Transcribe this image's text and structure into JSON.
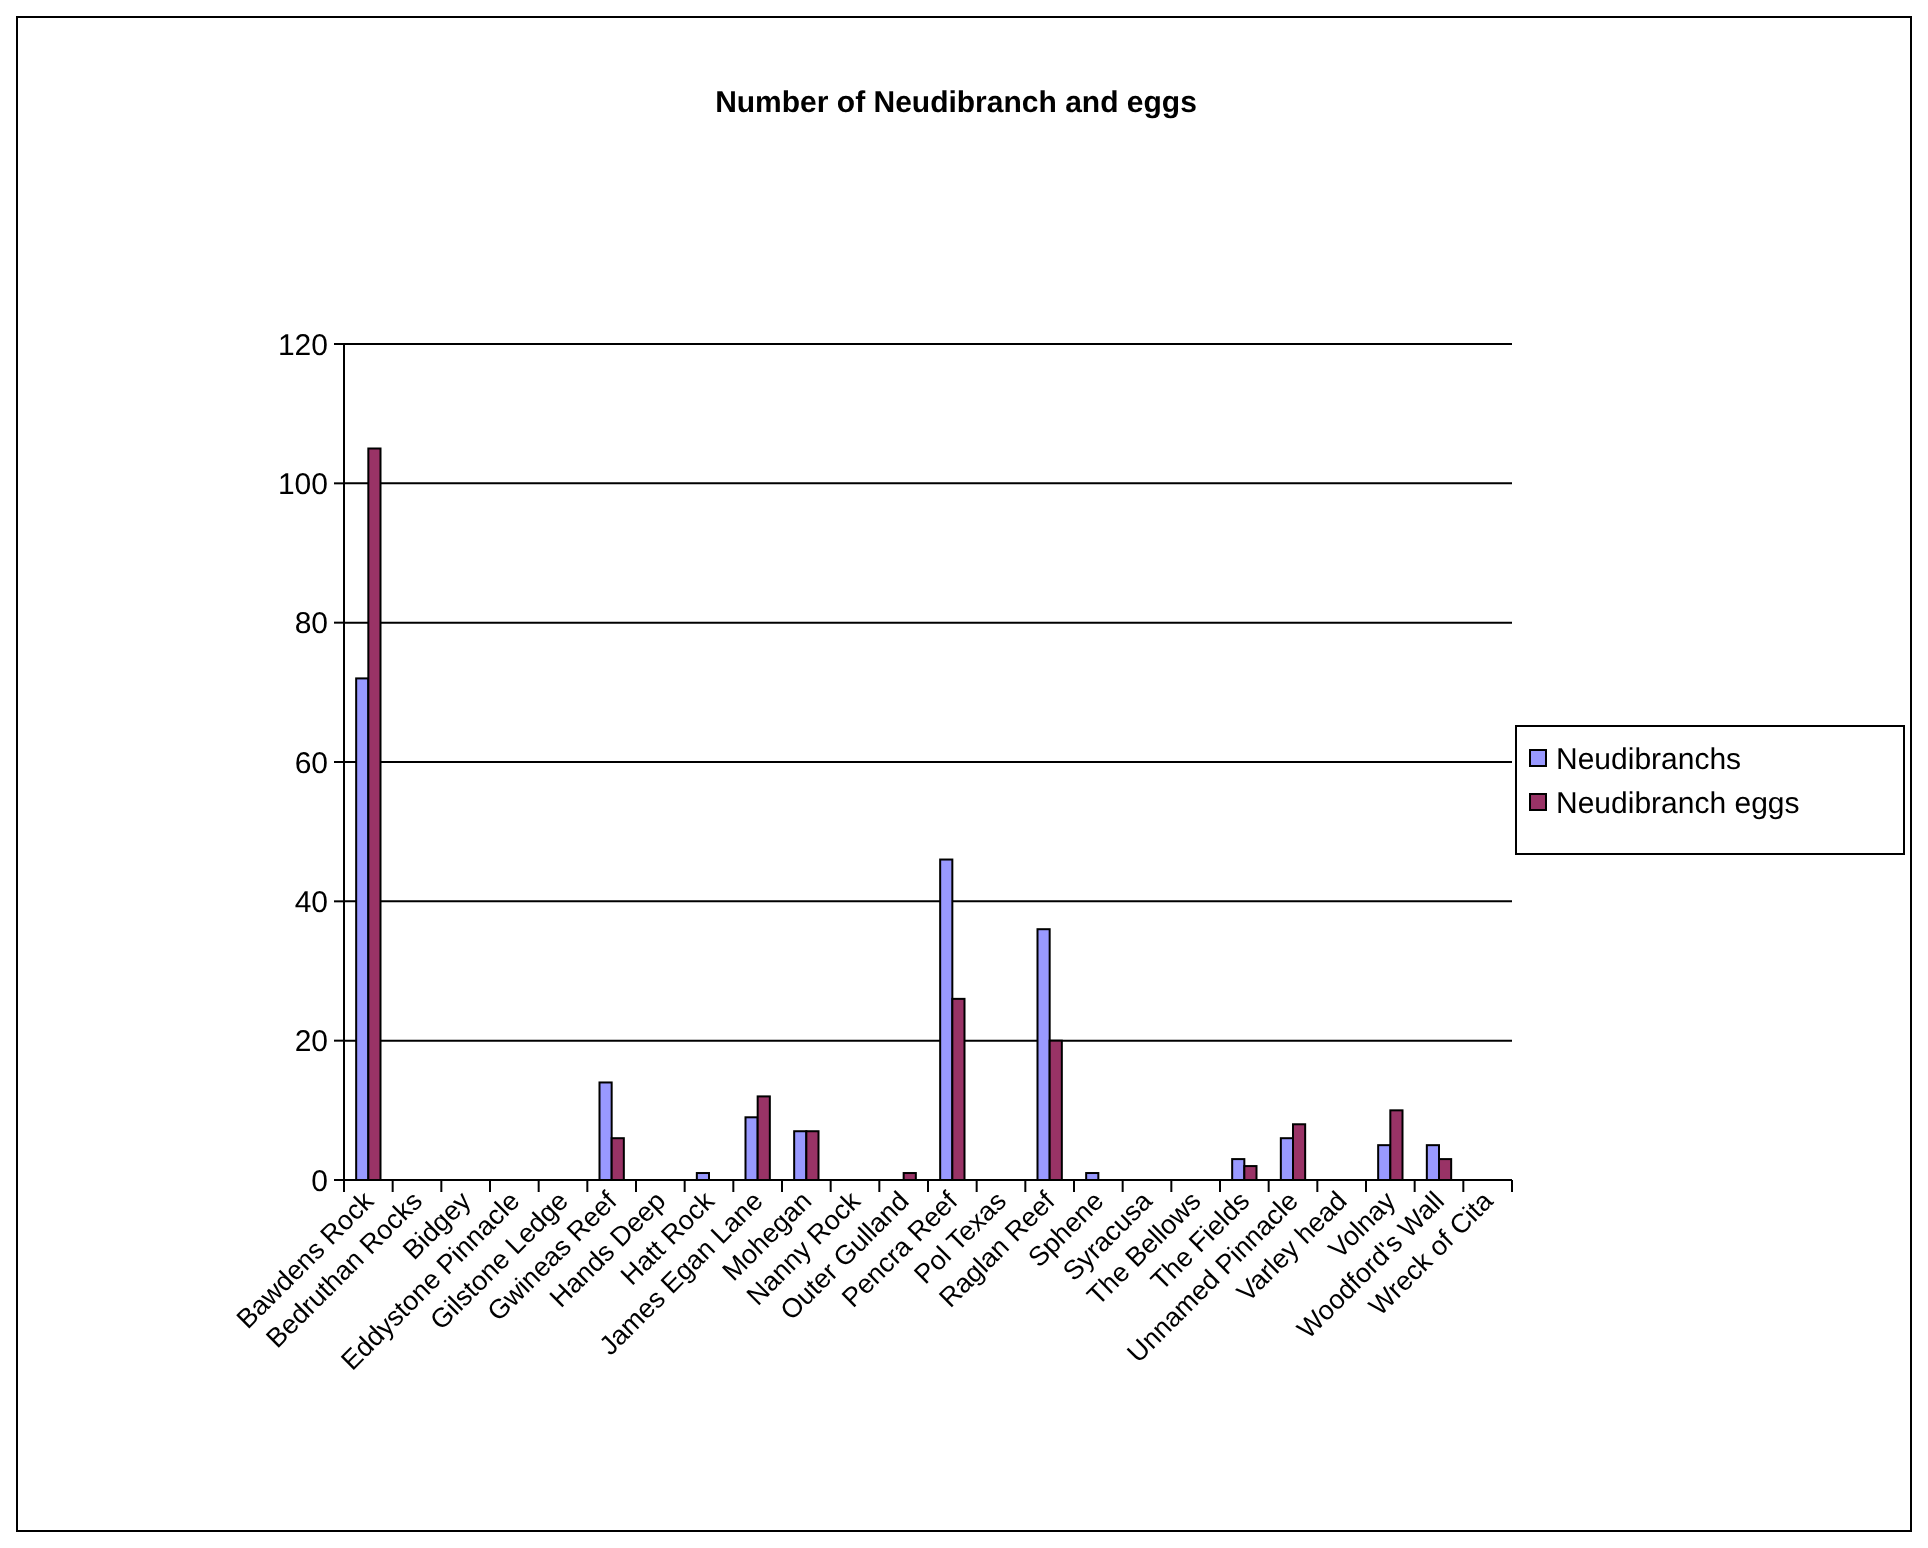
{
  "chart_data": {
    "type": "bar",
    "title": "Number of Neudibranch and eggs",
    "categories": [
      "Bawdens Rock",
      "Bedruthan Rocks",
      "Bidgey",
      "Eddystone Pinnacle",
      "Gilstone Ledge",
      "Gwineas Reef",
      "Hands Deep",
      "Hatt Rock",
      "James Egan Lane",
      "Mohegan",
      "Nanny Rock",
      "Outer Gulland",
      "Pencra Reef",
      "Pol Texas",
      "Raglan Reef",
      "Sphene",
      "Syracusa",
      "The Bellows",
      "The Fields",
      "Unnamed Pinnacle",
      "Varley head",
      "Volnay",
      "Woodford's Wall",
      "Wreck of Cita"
    ],
    "series": [
      {
        "name": "Neudibranchs",
        "color": "#9999ff",
        "values": [
          72,
          0,
          0,
          0,
          0,
          14,
          0,
          1,
          9,
          7,
          0,
          0,
          46,
          0,
          36,
          1,
          0,
          0,
          3,
          6,
          0,
          5,
          5,
          0
        ]
      },
      {
        "name": "Neudibranch eggs",
        "color": "#993366",
        "values": [
          105,
          0,
          0,
          0,
          0,
          6,
          0,
          0,
          12,
          7,
          0,
          1,
          26,
          0,
          20,
          0,
          0,
          0,
          2,
          8,
          0,
          10,
          3,
          0
        ]
      }
    ],
    "ylim": [
      0,
      120
    ],
    "yticks": [
      0,
      20,
      40,
      60,
      80,
      100,
      120
    ],
    "grid": "y",
    "legend": "right"
  }
}
